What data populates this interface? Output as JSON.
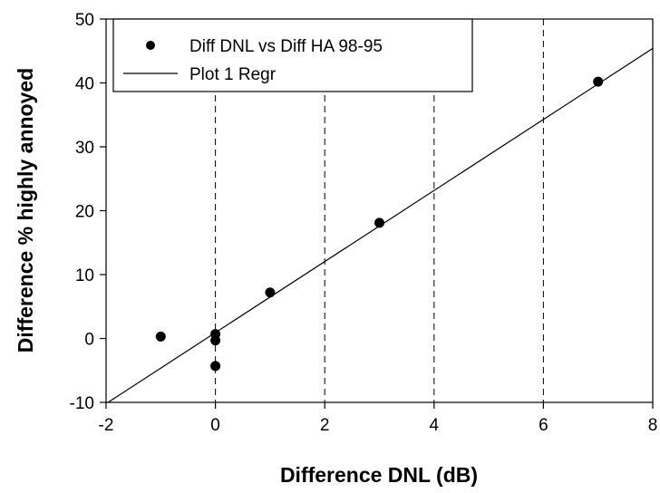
{
  "chart_data": {
    "type": "scatter",
    "xlabel": "Difference DNL (dB)",
    "ylabel": "Difference % highly annoyed",
    "xlim": [
      -2,
      8
    ],
    "ylim": [
      -10,
      50
    ],
    "x_ticks": [
      -2,
      0,
      2,
      4,
      6,
      8
    ],
    "y_ticks": [
      -10,
      0,
      10,
      20,
      30,
      40,
      50
    ],
    "vertical_dashed_lines_at": [
      0,
      2,
      4,
      6
    ],
    "legend_placement": "top-left",
    "series": [
      {
        "name": "Diff DNL vs Diff HA 98-95",
        "kind": "scatter",
        "x": [
          -1,
          0,
          0,
          0,
          1,
          3,
          7
        ],
        "y": [
          0.3,
          0.7,
          -0.3,
          -4.3,
          7.2,
          18.1,
          40.2
        ]
      },
      {
        "name": "Plot 1 Regr",
        "kind": "line",
        "x": [
          -2,
          8
        ],
        "y": [
          -10.2,
          45.4
        ]
      }
    ],
    "colors": {
      "marker": "#000000",
      "line": "#000000",
      "grid": "#000000"
    }
  }
}
